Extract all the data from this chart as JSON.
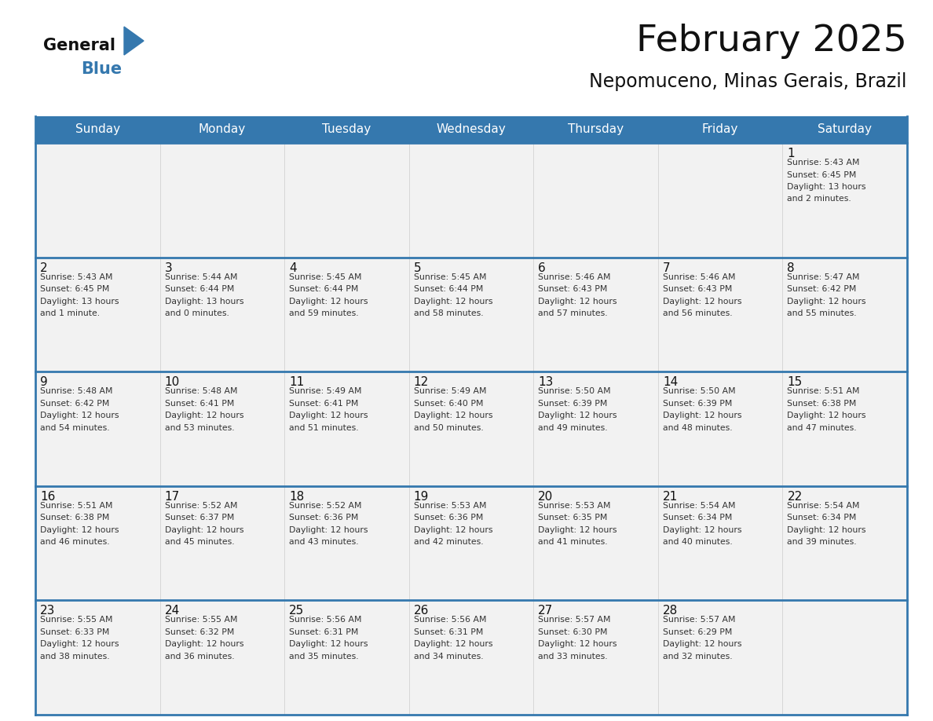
{
  "title": "February 2025",
  "subtitle": "Nepomuceno, Minas Gerais, Brazil",
  "header_color": "#3578ae",
  "header_text_color": "#ffffff",
  "cell_bg_color": "#f2f2f2",
  "border_color": "#3578ae",
  "day_names": [
    "Sunday",
    "Monday",
    "Tuesday",
    "Wednesday",
    "Thursday",
    "Friday",
    "Saturday"
  ],
  "days": [
    {
      "day": 1,
      "col": 6,
      "row": 0,
      "sunrise": "5:43 AM",
      "sunset": "6:45 PM",
      "daylight": "13 hours and 2 minutes."
    },
    {
      "day": 2,
      "col": 0,
      "row": 1,
      "sunrise": "5:43 AM",
      "sunset": "6:45 PM",
      "daylight": "13 hours and 1 minute."
    },
    {
      "day": 3,
      "col": 1,
      "row": 1,
      "sunrise": "5:44 AM",
      "sunset": "6:44 PM",
      "daylight": "13 hours and 0 minutes."
    },
    {
      "day": 4,
      "col": 2,
      "row": 1,
      "sunrise": "5:45 AM",
      "sunset": "6:44 PM",
      "daylight": "12 hours and 59 minutes."
    },
    {
      "day": 5,
      "col": 3,
      "row": 1,
      "sunrise": "5:45 AM",
      "sunset": "6:44 PM",
      "daylight": "12 hours and 58 minutes."
    },
    {
      "day": 6,
      "col": 4,
      "row": 1,
      "sunrise": "5:46 AM",
      "sunset": "6:43 PM",
      "daylight": "12 hours and 57 minutes."
    },
    {
      "day": 7,
      "col": 5,
      "row": 1,
      "sunrise": "5:46 AM",
      "sunset": "6:43 PM",
      "daylight": "12 hours and 56 minutes."
    },
    {
      "day": 8,
      "col": 6,
      "row": 1,
      "sunrise": "5:47 AM",
      "sunset": "6:42 PM",
      "daylight": "12 hours and 55 minutes."
    },
    {
      "day": 9,
      "col": 0,
      "row": 2,
      "sunrise": "5:48 AM",
      "sunset": "6:42 PM",
      "daylight": "12 hours and 54 minutes."
    },
    {
      "day": 10,
      "col": 1,
      "row": 2,
      "sunrise": "5:48 AM",
      "sunset": "6:41 PM",
      "daylight": "12 hours and 53 minutes."
    },
    {
      "day": 11,
      "col": 2,
      "row": 2,
      "sunrise": "5:49 AM",
      "sunset": "6:41 PM",
      "daylight": "12 hours and 51 minutes."
    },
    {
      "day": 12,
      "col": 3,
      "row": 2,
      "sunrise": "5:49 AM",
      "sunset": "6:40 PM",
      "daylight": "12 hours and 50 minutes."
    },
    {
      "day": 13,
      "col": 4,
      "row": 2,
      "sunrise": "5:50 AM",
      "sunset": "6:39 PM",
      "daylight": "12 hours and 49 minutes."
    },
    {
      "day": 14,
      "col": 5,
      "row": 2,
      "sunrise": "5:50 AM",
      "sunset": "6:39 PM",
      "daylight": "12 hours and 48 minutes."
    },
    {
      "day": 15,
      "col": 6,
      "row": 2,
      "sunrise": "5:51 AM",
      "sunset": "6:38 PM",
      "daylight": "12 hours and 47 minutes."
    },
    {
      "day": 16,
      "col": 0,
      "row": 3,
      "sunrise": "5:51 AM",
      "sunset": "6:38 PM",
      "daylight": "12 hours and 46 minutes."
    },
    {
      "day": 17,
      "col": 1,
      "row": 3,
      "sunrise": "5:52 AM",
      "sunset": "6:37 PM",
      "daylight": "12 hours and 45 minutes."
    },
    {
      "day": 18,
      "col": 2,
      "row": 3,
      "sunrise": "5:52 AM",
      "sunset": "6:36 PM",
      "daylight": "12 hours and 43 minutes."
    },
    {
      "day": 19,
      "col": 3,
      "row": 3,
      "sunrise": "5:53 AM",
      "sunset": "6:36 PM",
      "daylight": "12 hours and 42 minutes."
    },
    {
      "day": 20,
      "col": 4,
      "row": 3,
      "sunrise": "5:53 AM",
      "sunset": "6:35 PM",
      "daylight": "12 hours and 41 minutes."
    },
    {
      "day": 21,
      "col": 5,
      "row": 3,
      "sunrise": "5:54 AM",
      "sunset": "6:34 PM",
      "daylight": "12 hours and 40 minutes."
    },
    {
      "day": 22,
      "col": 6,
      "row": 3,
      "sunrise": "5:54 AM",
      "sunset": "6:34 PM",
      "daylight": "12 hours and 39 minutes."
    },
    {
      "day": 23,
      "col": 0,
      "row": 4,
      "sunrise": "5:55 AM",
      "sunset": "6:33 PM",
      "daylight": "12 hours and 38 minutes."
    },
    {
      "day": 24,
      "col": 1,
      "row": 4,
      "sunrise": "5:55 AM",
      "sunset": "6:32 PM",
      "daylight": "12 hours and 36 minutes."
    },
    {
      "day": 25,
      "col": 2,
      "row": 4,
      "sunrise": "5:56 AM",
      "sunset": "6:31 PM",
      "daylight": "12 hours and 35 minutes."
    },
    {
      "day": 26,
      "col": 3,
      "row": 4,
      "sunrise": "5:56 AM",
      "sunset": "6:31 PM",
      "daylight": "12 hours and 34 minutes."
    },
    {
      "day": 27,
      "col": 4,
      "row": 4,
      "sunrise": "5:57 AM",
      "sunset": "6:30 PM",
      "daylight": "12 hours and 33 minutes."
    },
    {
      "day": 28,
      "col": 5,
      "row": 4,
      "sunrise": "5:57 AM",
      "sunset": "6:29 PM",
      "daylight": "12 hours and 32 minutes."
    }
  ],
  "num_rows": 5,
  "title_fontsize": 34,
  "subtitle_fontsize": 17,
  "day_header_fontsize": 11,
  "day_num_fontsize": 11,
  "info_fontsize": 7.8,
  "text_color": "#111111",
  "info_text_color": "#333333",
  "logo_general_color": "#111111",
  "logo_blue_color": "#3578ae",
  "logo_triangle_color": "#3578ae"
}
